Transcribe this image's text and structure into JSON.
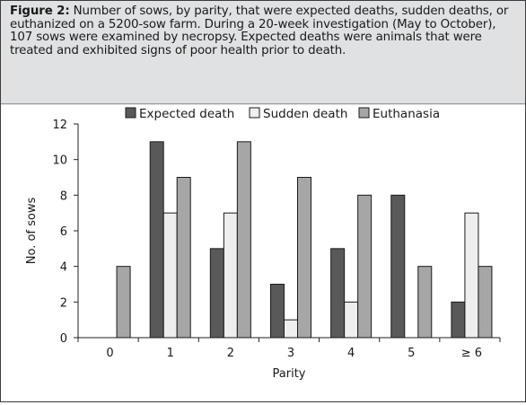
{
  "caption": {
    "label": "Figure 2:",
    "text": "Number of sows, by parity, that were expected deaths, sudden deaths, or euthanized on a 5200-sow farm. During a 20-week investigation (May to October), 107 sows were examined by necropsy. Expected deaths were animals that were treated and exhibited signs of poor health prior to death."
  },
  "chart_data": {
    "type": "bar",
    "categories": [
      "0",
      "1",
      "2",
      "3",
      "4",
      "5",
      "≥ 6"
    ],
    "series": [
      {
        "name": "Expected death",
        "values": [
          0,
          11,
          5,
          3,
          5,
          8,
          2
        ],
        "color": "#595959"
      },
      {
        "name": "Sudden death",
        "values": [
          0,
          7,
          7,
          1,
          2,
          0,
          7
        ],
        "color": "#eeeeee"
      },
      {
        "name": "Euthanasia",
        "values": [
          4,
          9,
          11,
          9,
          8,
          4,
          4
        ],
        "color": "#a6a6a6"
      }
    ],
    "xlabel": "Parity",
    "ylabel": "No. of sows",
    "ylim": [
      0,
      12
    ],
    "yticks": [
      0,
      2,
      4,
      6,
      8,
      10,
      12
    ],
    "grid": false,
    "legend": "top"
  }
}
